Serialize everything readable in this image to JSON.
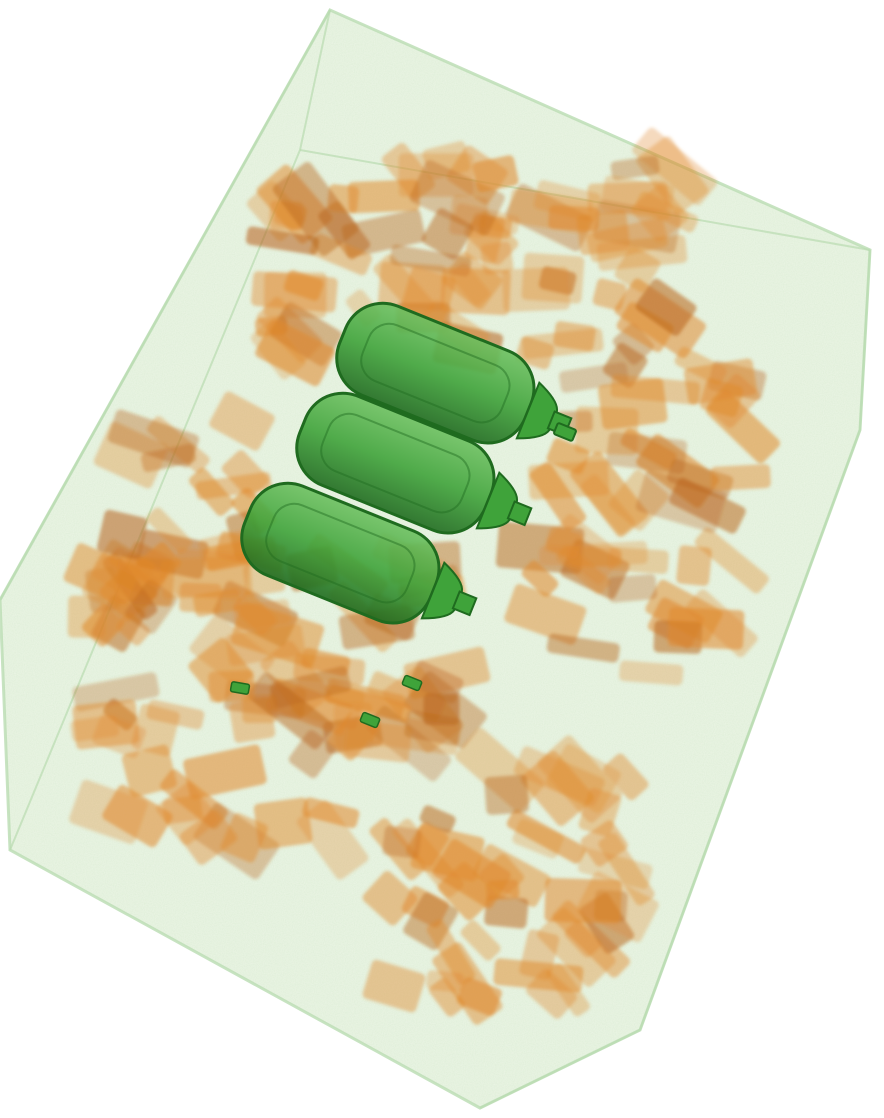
{
  "scene": {
    "background": "#ffffff",
    "container_color": "#b9dcb1",
    "container_shade": "#dcecd2",
    "organic_color": "#e0892c",
    "organic_dark": "#b8631a",
    "metal_color": "#3fa33a",
    "metal_dark": "#1f6b1f",
    "metal_light": "#6cc060"
  },
  "objects": [
    {
      "name": "container-box",
      "material": "low-density"
    },
    {
      "name": "bottle",
      "material": "metal",
      "count": 3
    },
    {
      "name": "packed-item",
      "material": "organic"
    }
  ]
}
